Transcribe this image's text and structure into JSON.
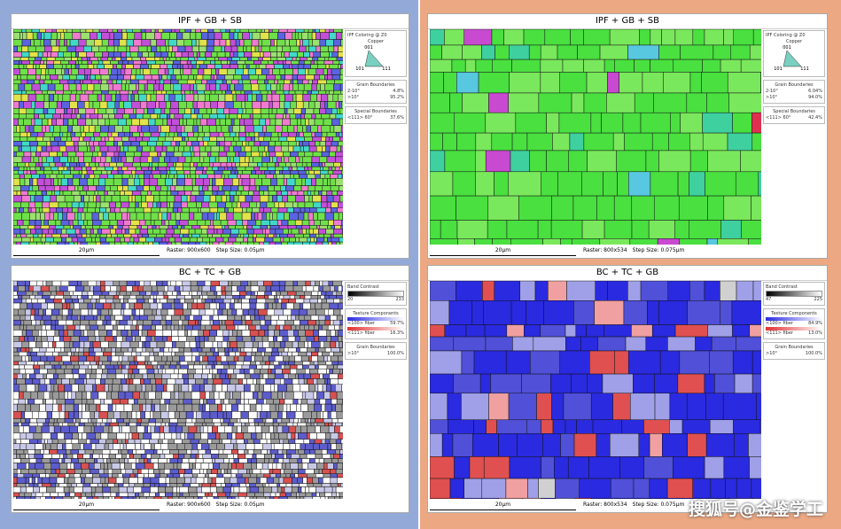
{
  "panels": [
    {
      "title": "IPF + GB + SB",
      "scale_bar": "20μm",
      "raster": "Raster: 900x600",
      "step": "Step Size: 0.05μm",
      "legend": {
        "heading": "IPF Coloring @ Z0",
        "material": "Copper",
        "poles": [
          "001",
          "101",
          "111"
        ],
        "sections": [
          {
            "title": "Grain Boundaries",
            "rows": [
              [
                "2-10°",
                "4.8%"
              ],
              [
                ">10°",
                "95.2%"
              ]
            ]
          },
          {
            "title": "Special Boundaries",
            "rows": [
              [
                "<111> 60°",
                "37.6%"
              ]
            ]
          }
        ]
      }
    },
    {
      "title": "IPF + GB + SB",
      "scale_bar": "20μm",
      "raster": "Raster: 800x534",
      "step": "Step Size: 0.075μm",
      "legend": {
        "heading": "IPF Coloring @ Z0",
        "material": "Copper",
        "poles": [
          "001",
          "101",
          "111"
        ],
        "sections": [
          {
            "title": "Grain Boundaries",
            "rows": [
              [
                "2-10°",
                "6.04%"
              ],
              [
                ">10°",
                "94.0%"
              ]
            ]
          },
          {
            "title": "Special Boundaries",
            "rows": [
              [
                "<111> 60°",
                "42.4%"
              ]
            ]
          }
        ]
      }
    },
    {
      "title": "BC + TC + GB",
      "scale_bar": "20μm",
      "raster": "Raster: 900x600",
      "step": "Step Size: 0.05μm",
      "legend": {
        "heading": "Band Contrast",
        "range": [
          "20",
          "233"
        ],
        "sections": [
          {
            "title": "Texture Components",
            "rows": [
              [
                "<100> fiber",
                "59.7%"
              ],
              [
                "<111> fiber",
                "16.3%"
              ]
            ]
          },
          {
            "title": "Grain Boundaries",
            "rows": [
              [
                ">10°",
                "100.0%"
              ]
            ]
          }
        ]
      }
    },
    {
      "title": "BC + TC + GB",
      "scale_bar": "20μm",
      "raster": "Raster: 800x534",
      "step": "Step Size: 0.075μm",
      "legend": {
        "heading": "Band Contrast",
        "range": [
          "47",
          "225"
        ],
        "sections": [
          {
            "title": "Texture Components",
            "rows": [
              [
                "<100> fiber",
                "84.9%"
              ],
              [
                "<111> fiber",
                "13.0%"
              ]
            ]
          },
          {
            "title": "Grain Boundaries",
            "rows": [
              [
                ">10°",
                "100.0%"
              ]
            ]
          }
        ]
      }
    }
  ],
  "watermark": "搜狐号@金鉴学工"
}
